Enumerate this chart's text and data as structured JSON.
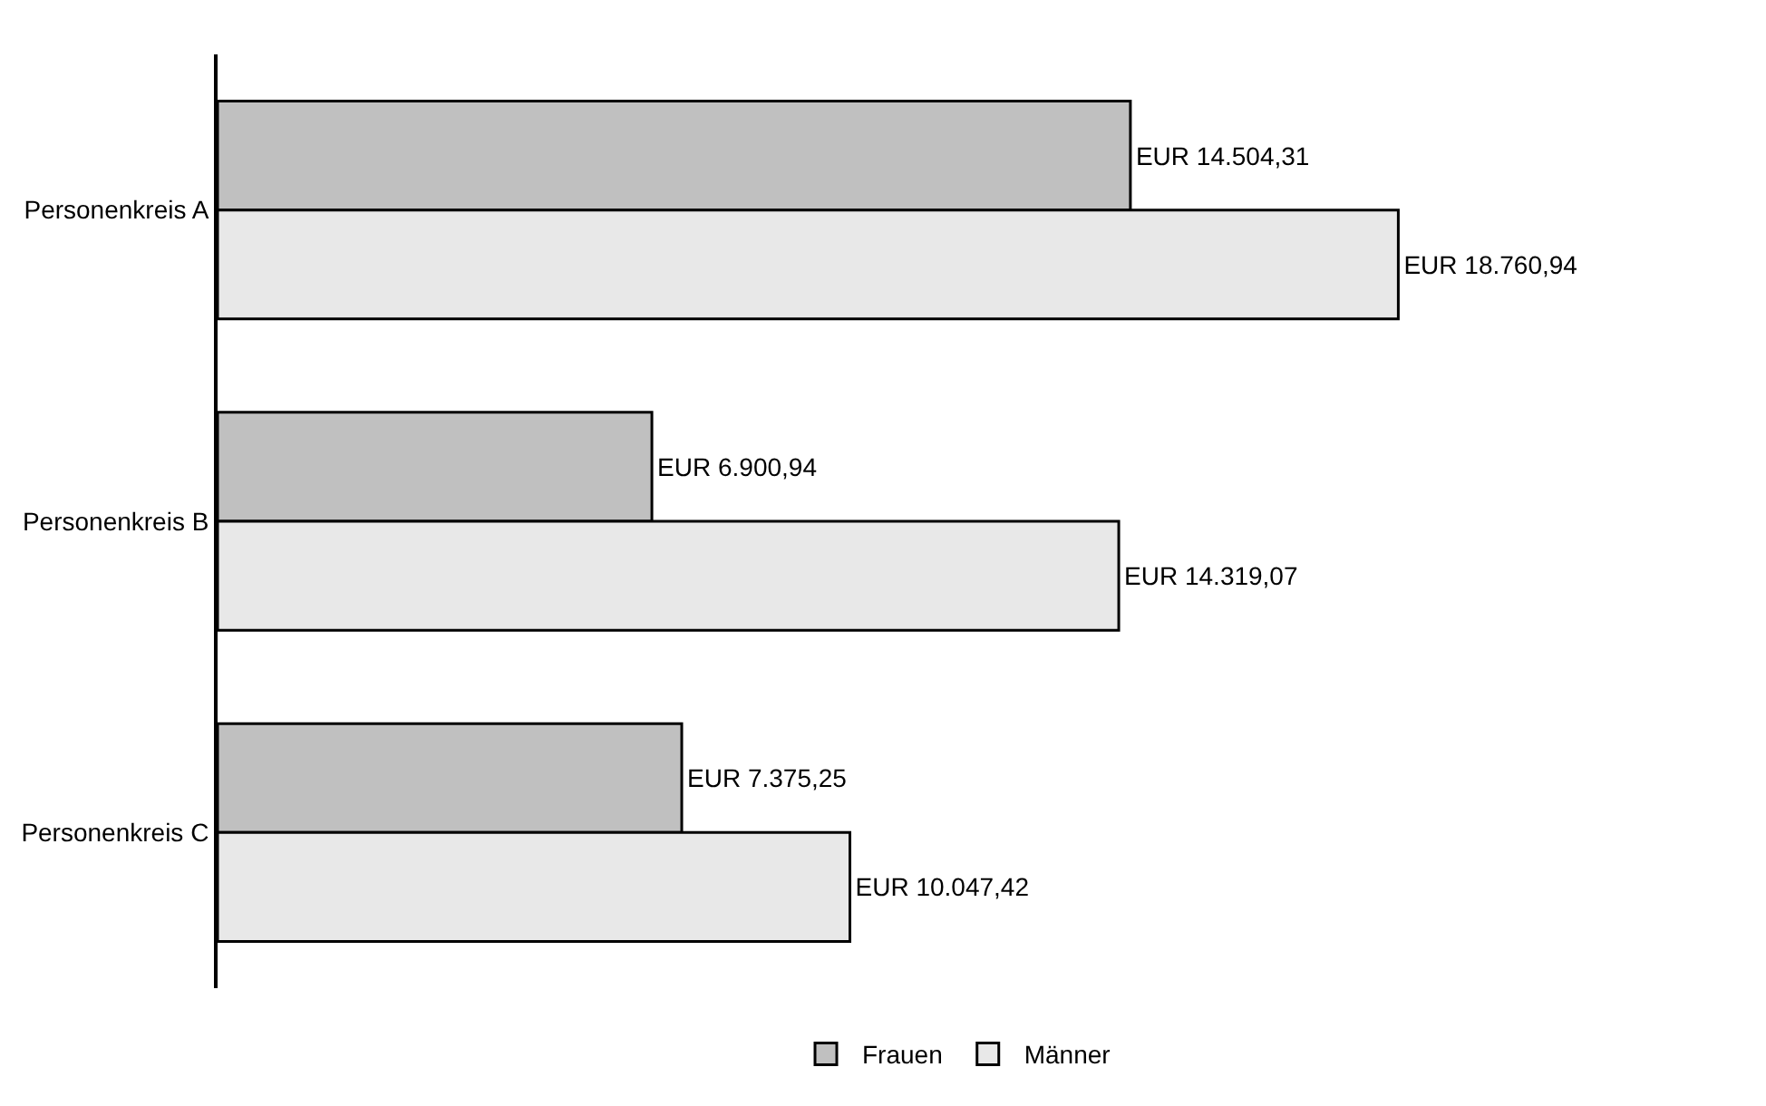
{
  "chart_data": {
    "type": "bar",
    "orientation": "horizontal",
    "categories": [
      "Personenkreis A",
      "Personenkreis B",
      "Personenkreis C"
    ],
    "series": [
      {
        "name": "Frauen",
        "color": "#c0c0c0",
        "values": [
          14504.31,
          6900.94,
          7375.25
        ],
        "value_labels": [
          "EUR 14.504,31",
          "EUR 6.900,94",
          "EUR 7.375,25"
        ]
      },
      {
        "name": "Männer",
        "color": "#e8e8e8",
        "values": [
          18760.94,
          14319.07,
          10047.42
        ],
        "value_labels": [
          "EUR 18.760,94",
          "EUR 14.319,07",
          "EUR 10.047,42"
        ]
      }
    ],
    "legend": "bottom"
  }
}
